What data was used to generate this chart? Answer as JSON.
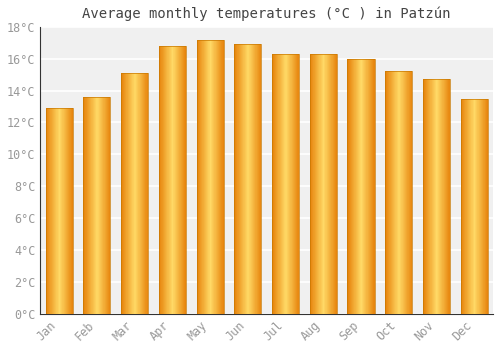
{
  "title": "Average monthly temperatures (°C ) in Patzún",
  "months": [
    "Jan",
    "Feb",
    "Mar",
    "Apr",
    "May",
    "Jun",
    "Jul",
    "Aug",
    "Sep",
    "Oct",
    "Nov",
    "Dec"
  ],
  "temperatures": [
    12.9,
    13.6,
    15.1,
    16.8,
    17.2,
    16.9,
    16.3,
    16.3,
    16.0,
    15.2,
    14.7,
    13.5
  ],
  "bar_color_left": "#F5A623",
  "bar_color_center": "#FFD966",
  "bar_color_right": "#E8920A",
  "ylim": [
    0,
    18
  ],
  "yticks": [
    0,
    2,
    4,
    6,
    8,
    10,
    12,
    14,
    16,
    18
  ],
  "ytick_labels": [
    "0°C",
    "2°C",
    "4°C",
    "6°C",
    "8°C",
    "10°C",
    "12°C",
    "14°C",
    "16°C",
    "18°C"
  ],
  "background_color": "#ffffff",
  "plot_bg_color": "#f0f0f0",
  "grid_color": "#ffffff",
  "title_fontsize": 10,
  "tick_fontsize": 8.5,
  "tick_color": "#999999",
  "spine_color": "#333333"
}
